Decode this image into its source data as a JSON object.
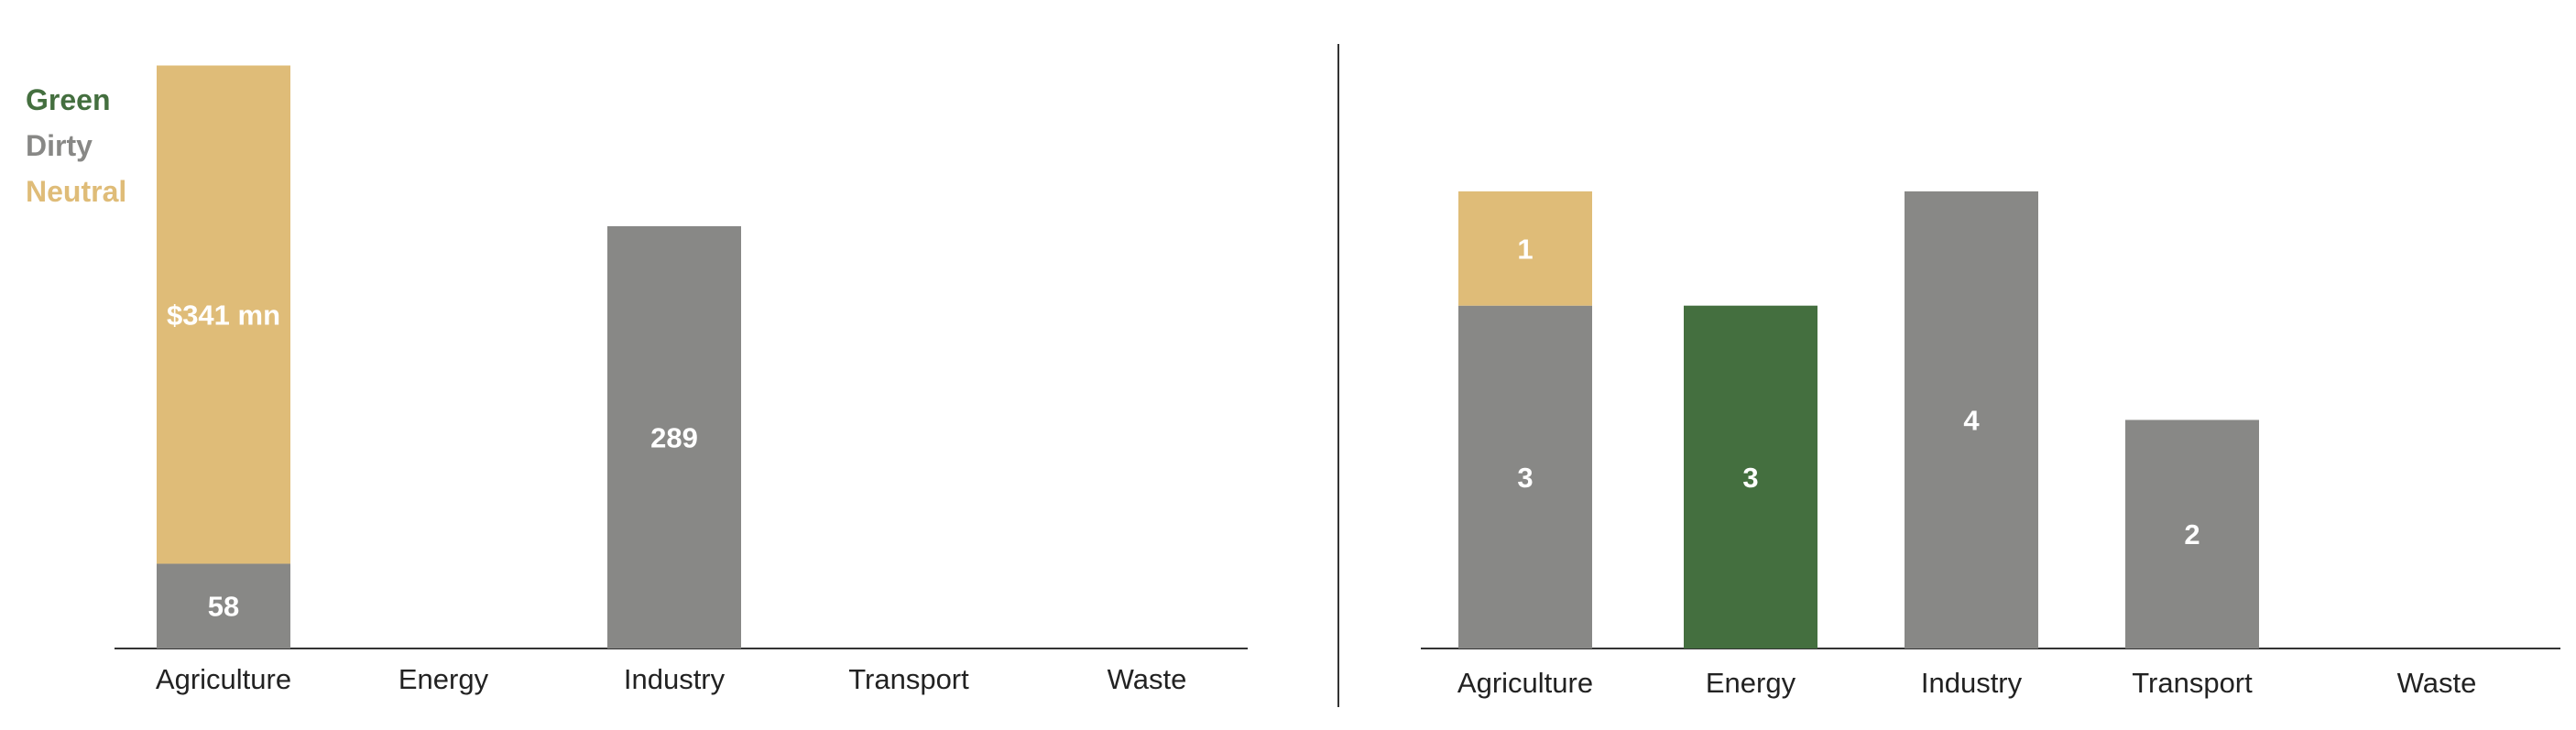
{
  "colors": {
    "green": "#446f3f",
    "dirty": "#888886",
    "neutral": "#dfbc78",
    "axis": "#333333",
    "text": "#222222"
  },
  "legend": [
    {
      "name": "Green",
      "color": "#446f3f"
    },
    {
      "name": "Dirty",
      "color": "#888886"
    },
    {
      "name": "Neutral",
      "color": "#dfbc78"
    }
  ],
  "chart_data": [
    {
      "type": "bar",
      "stacked": true,
      "categories": [
        "Agriculture",
        "Energy",
        "Industry",
        "Transport",
        "Waste"
      ],
      "ylim": [
        0,
        420
      ],
      "series": [
        {
          "name": "Dirty",
          "values": [
            58,
            0,
            289,
            0,
            0
          ],
          "labels": [
            "58",
            "",
            "289",
            "",
            ""
          ]
        },
        {
          "name": "Neutral",
          "values": [
            341,
            0,
            0,
            0,
            0
          ],
          "labels": [
            "$341 mn",
            "",
            "",
            "",
            ""
          ]
        },
        {
          "name": "Green",
          "values": [
            0,
            0,
            0,
            0,
            0
          ],
          "labels": [
            "",
            "",
            "",
            "",
            ""
          ]
        }
      ],
      "legend": "top-left",
      "grid": false
    },
    {
      "type": "bar",
      "stacked": true,
      "categories": [
        "Agriculture",
        "Energy",
        "Industry",
        "Transport",
        "Waste"
      ],
      "ylim": [
        0,
        5.37
      ],
      "series": [
        {
          "name": "Dirty",
          "values": [
            3,
            0,
            4,
            2,
            0
          ],
          "labels": [
            "3",
            "",
            "4",
            "2",
            ""
          ]
        },
        {
          "name": "Green",
          "values": [
            0,
            3,
            0,
            0,
            0
          ],
          "labels": [
            "",
            "3",
            "",
            "",
            ""
          ]
        },
        {
          "name": "Neutral",
          "values": [
            1,
            0,
            0,
            0,
            0
          ],
          "labels": [
            "1",
            "",
            "",
            "",
            ""
          ]
        }
      ],
      "grid": false
    }
  ]
}
